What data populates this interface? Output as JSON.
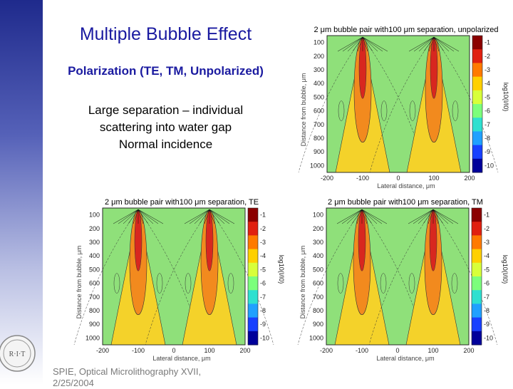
{
  "slide": {
    "title": "Multiple Bubble Effect",
    "subtitle": "Polarization (TE, TM, Unpolarized)",
    "description_lines": [
      "Large separation – individual",
      "scattering into water gap",
      "Normal incidence"
    ],
    "footer_line1": "SPIE, Optical Microlithography XVII,",
    "footer_line2": "2/25/2004",
    "logo_text": "R·I·T"
  },
  "colors": {
    "title": "#1a1aa0",
    "sidebar_top": "#1f2a8c",
    "field_yellow": "#f4d22a",
    "field_green": "#8fe07a",
    "lobe_orange": "#f28a1e",
    "lobe_red": "#d8271f"
  },
  "plots": [
    {
      "id": "unpolarized",
      "title": "2 μm bubble pair with100 μm separation, unpolarized",
      "xlabel": "Lateral distance, μm",
      "ylabel": "Distance from bubble, μm",
      "cbar_label": "log10(I/I0)",
      "x_ticks": [
        "-200",
        "-100",
        "0",
        "100",
        "200"
      ],
      "y_ticks": [
        "100",
        "200",
        "300",
        "400",
        "500",
        "600",
        "700",
        "800",
        "900",
        "1000"
      ],
      "cbar_ticks": [
        "-1",
        "-2",
        "-3",
        "-4",
        "-5",
        "-6",
        "-7",
        "-8",
        "-9",
        "-10"
      ]
    },
    {
      "id": "te",
      "title": "2 μm bubble pair with100 μm separation, TE",
      "xlabel": "Lateral distance, μm",
      "ylabel": "Distance from bubble, μm",
      "cbar_label": "log10(I/I0)",
      "x_ticks": [
        "-200",
        "-100",
        "0",
        "100",
        "200"
      ],
      "y_ticks": [
        "100",
        "200",
        "300",
        "400",
        "500",
        "600",
        "700",
        "800",
        "900",
        "1000"
      ],
      "cbar_ticks": [
        "-1",
        "-2",
        "-3",
        "-4",
        "-5",
        "-6",
        "-7",
        "-8",
        "-9",
        "-10"
      ]
    },
    {
      "id": "tm",
      "title": "2 μm bubble pair with100 μm separation, TM",
      "xlabel": "Lateral distance, μm",
      "ylabel": "Distance from bubble, μm",
      "cbar_label": "log10(I/I0)",
      "x_ticks": [
        "-200",
        "-100",
        "0",
        "100",
        "200"
      ],
      "y_ticks": [
        "100",
        "200",
        "300",
        "400",
        "500",
        "600",
        "700",
        "800",
        "900",
        "1000"
      ],
      "cbar_ticks": [
        "-1",
        "-2",
        "-3",
        "-4",
        "-5",
        "-6",
        "-7",
        "-8",
        "-9",
        "-10"
      ]
    }
  ]
}
